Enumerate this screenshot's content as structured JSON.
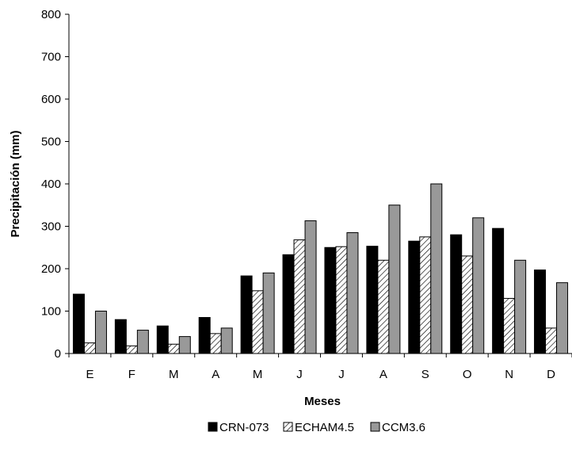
{
  "chart_data": {
    "type": "bar",
    "title": "",
    "xlabel": "Meses",
    "ylabel": "Precipitación (mm)",
    "ylim": [
      0,
      800
    ],
    "yticks": [
      0,
      100,
      200,
      300,
      400,
      500,
      600,
      700,
      800
    ],
    "categories": [
      "E",
      "F",
      "M",
      "A",
      "M",
      "J",
      "J",
      "A",
      "S",
      "O",
      "N",
      "D"
    ],
    "series": [
      {
        "name": "CRN-073",
        "color": "#000000",
        "pattern": "solid",
        "values": [
          140,
          80,
          65,
          85,
          183,
          233,
          250,
          253,
          265,
          280,
          295,
          197
        ]
      },
      {
        "name": "ECHAM4.5",
        "color": "#ffffff",
        "pattern": "diagonal-hatch",
        "values": [
          25,
          18,
          22,
          47,
          148,
          268,
          252,
          220,
          275,
          230,
          130,
          60
        ]
      },
      {
        "name": "CCM3.6",
        "color": "#999999",
        "pattern": "solid",
        "values": [
          100,
          55,
          40,
          60,
          190,
          313,
          285,
          350,
          400,
          320,
          220,
          167
        ]
      }
    ],
    "grid": false,
    "legend_position": "bottom-center"
  }
}
